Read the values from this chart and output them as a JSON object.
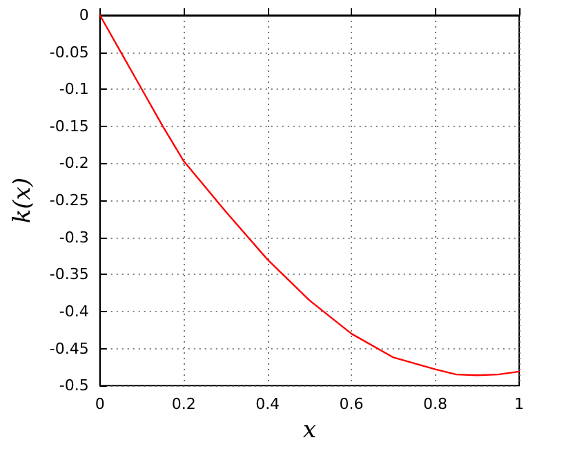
{
  "chart_data": {
    "type": "line",
    "xlabel": "x",
    "ylabel": "k(x)",
    "x": [
      0,
      0.05,
      0.1,
      0.15,
      0.2,
      0.3,
      0.4,
      0.5,
      0.6,
      0.7,
      0.8,
      0.85,
      0.9,
      0.95,
      1
    ],
    "series": [
      {
        "color": "#ff0000",
        "values": [
          0,
          -0.05,
          -0.1,
          -0.15,
          -0.197,
          -0.265,
          -0.33,
          -0.385,
          -0.43,
          -0.462,
          -0.478,
          -0.485,
          -0.486,
          -0.485,
          -0.481
        ]
      }
    ],
    "xlim": [
      0,
      1
    ],
    "xticks": [
      0,
      0.2,
      0.4,
      0.6,
      0.8,
      1
    ],
    "ylim": [
      -0.5,
      0
    ],
    "yticks": [
      0,
      -0.05,
      -0.1,
      -0.15,
      -0.2,
      -0.25,
      -0.3,
      -0.35,
      -0.4,
      -0.45,
      -0.5
    ],
    "grid": true,
    "marker": "none",
    "line_style": "solid"
  }
}
